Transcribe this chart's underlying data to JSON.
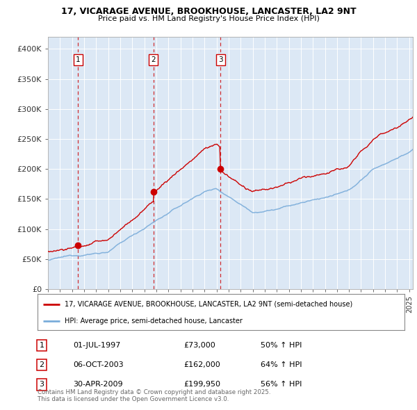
{
  "title_line1": "17, VICARAGE AVENUE, BROOKHOUSE, LANCASTER, LA2 9NT",
  "title_line2": "Price paid vs. HM Land Registry's House Price Index (HPI)",
  "background_color": "#ffffff",
  "plot_bg_color": "#dce8f5",
  "purchases": [
    {
      "label": "1",
      "date_num": 1997.5,
      "price": 73000,
      "pct": "50%",
      "date_str": "01-JUL-1997"
    },
    {
      "label": "2",
      "date_num": 2003.75,
      "price": 162000,
      "pct": "64%",
      "date_str": "06-OCT-2003"
    },
    {
      "label": "3",
      "date_num": 2009.33,
      "price": 199950,
      "pct": "56%",
      "date_str": "30-APR-2009"
    }
  ],
  "ylim": [
    0,
    420000
  ],
  "xlim": [
    1995.0,
    2025.3
  ],
  "yticks": [
    0,
    50000,
    100000,
    150000,
    200000,
    250000,
    300000,
    350000,
    400000
  ],
  "ytick_labels": [
    "£0",
    "£50K",
    "£100K",
    "£150K",
    "£200K",
    "£250K",
    "£300K",
    "£350K",
    "£400K"
  ],
  "legend_label_red": "17, VICARAGE AVENUE, BROOKHOUSE, LANCASTER, LA2 9NT (semi-detached house)",
  "legend_label_blue": "HPI: Average price, semi-detached house, Lancaster",
  "footer": "Contains HM Land Registry data © Crown copyright and database right 2025.\nThis data is licensed under the Open Government Licence v3.0.",
  "red_color": "#cc0000",
  "blue_color": "#7aacda",
  "xticks": [
    1995,
    1996,
    1997,
    1998,
    1999,
    2000,
    2001,
    2002,
    2003,
    2004,
    2005,
    2006,
    2007,
    2008,
    2009,
    2010,
    2011,
    2012,
    2013,
    2014,
    2015,
    2016,
    2017,
    2018,
    2019,
    2020,
    2021,
    2022,
    2023,
    2024,
    2025
  ]
}
